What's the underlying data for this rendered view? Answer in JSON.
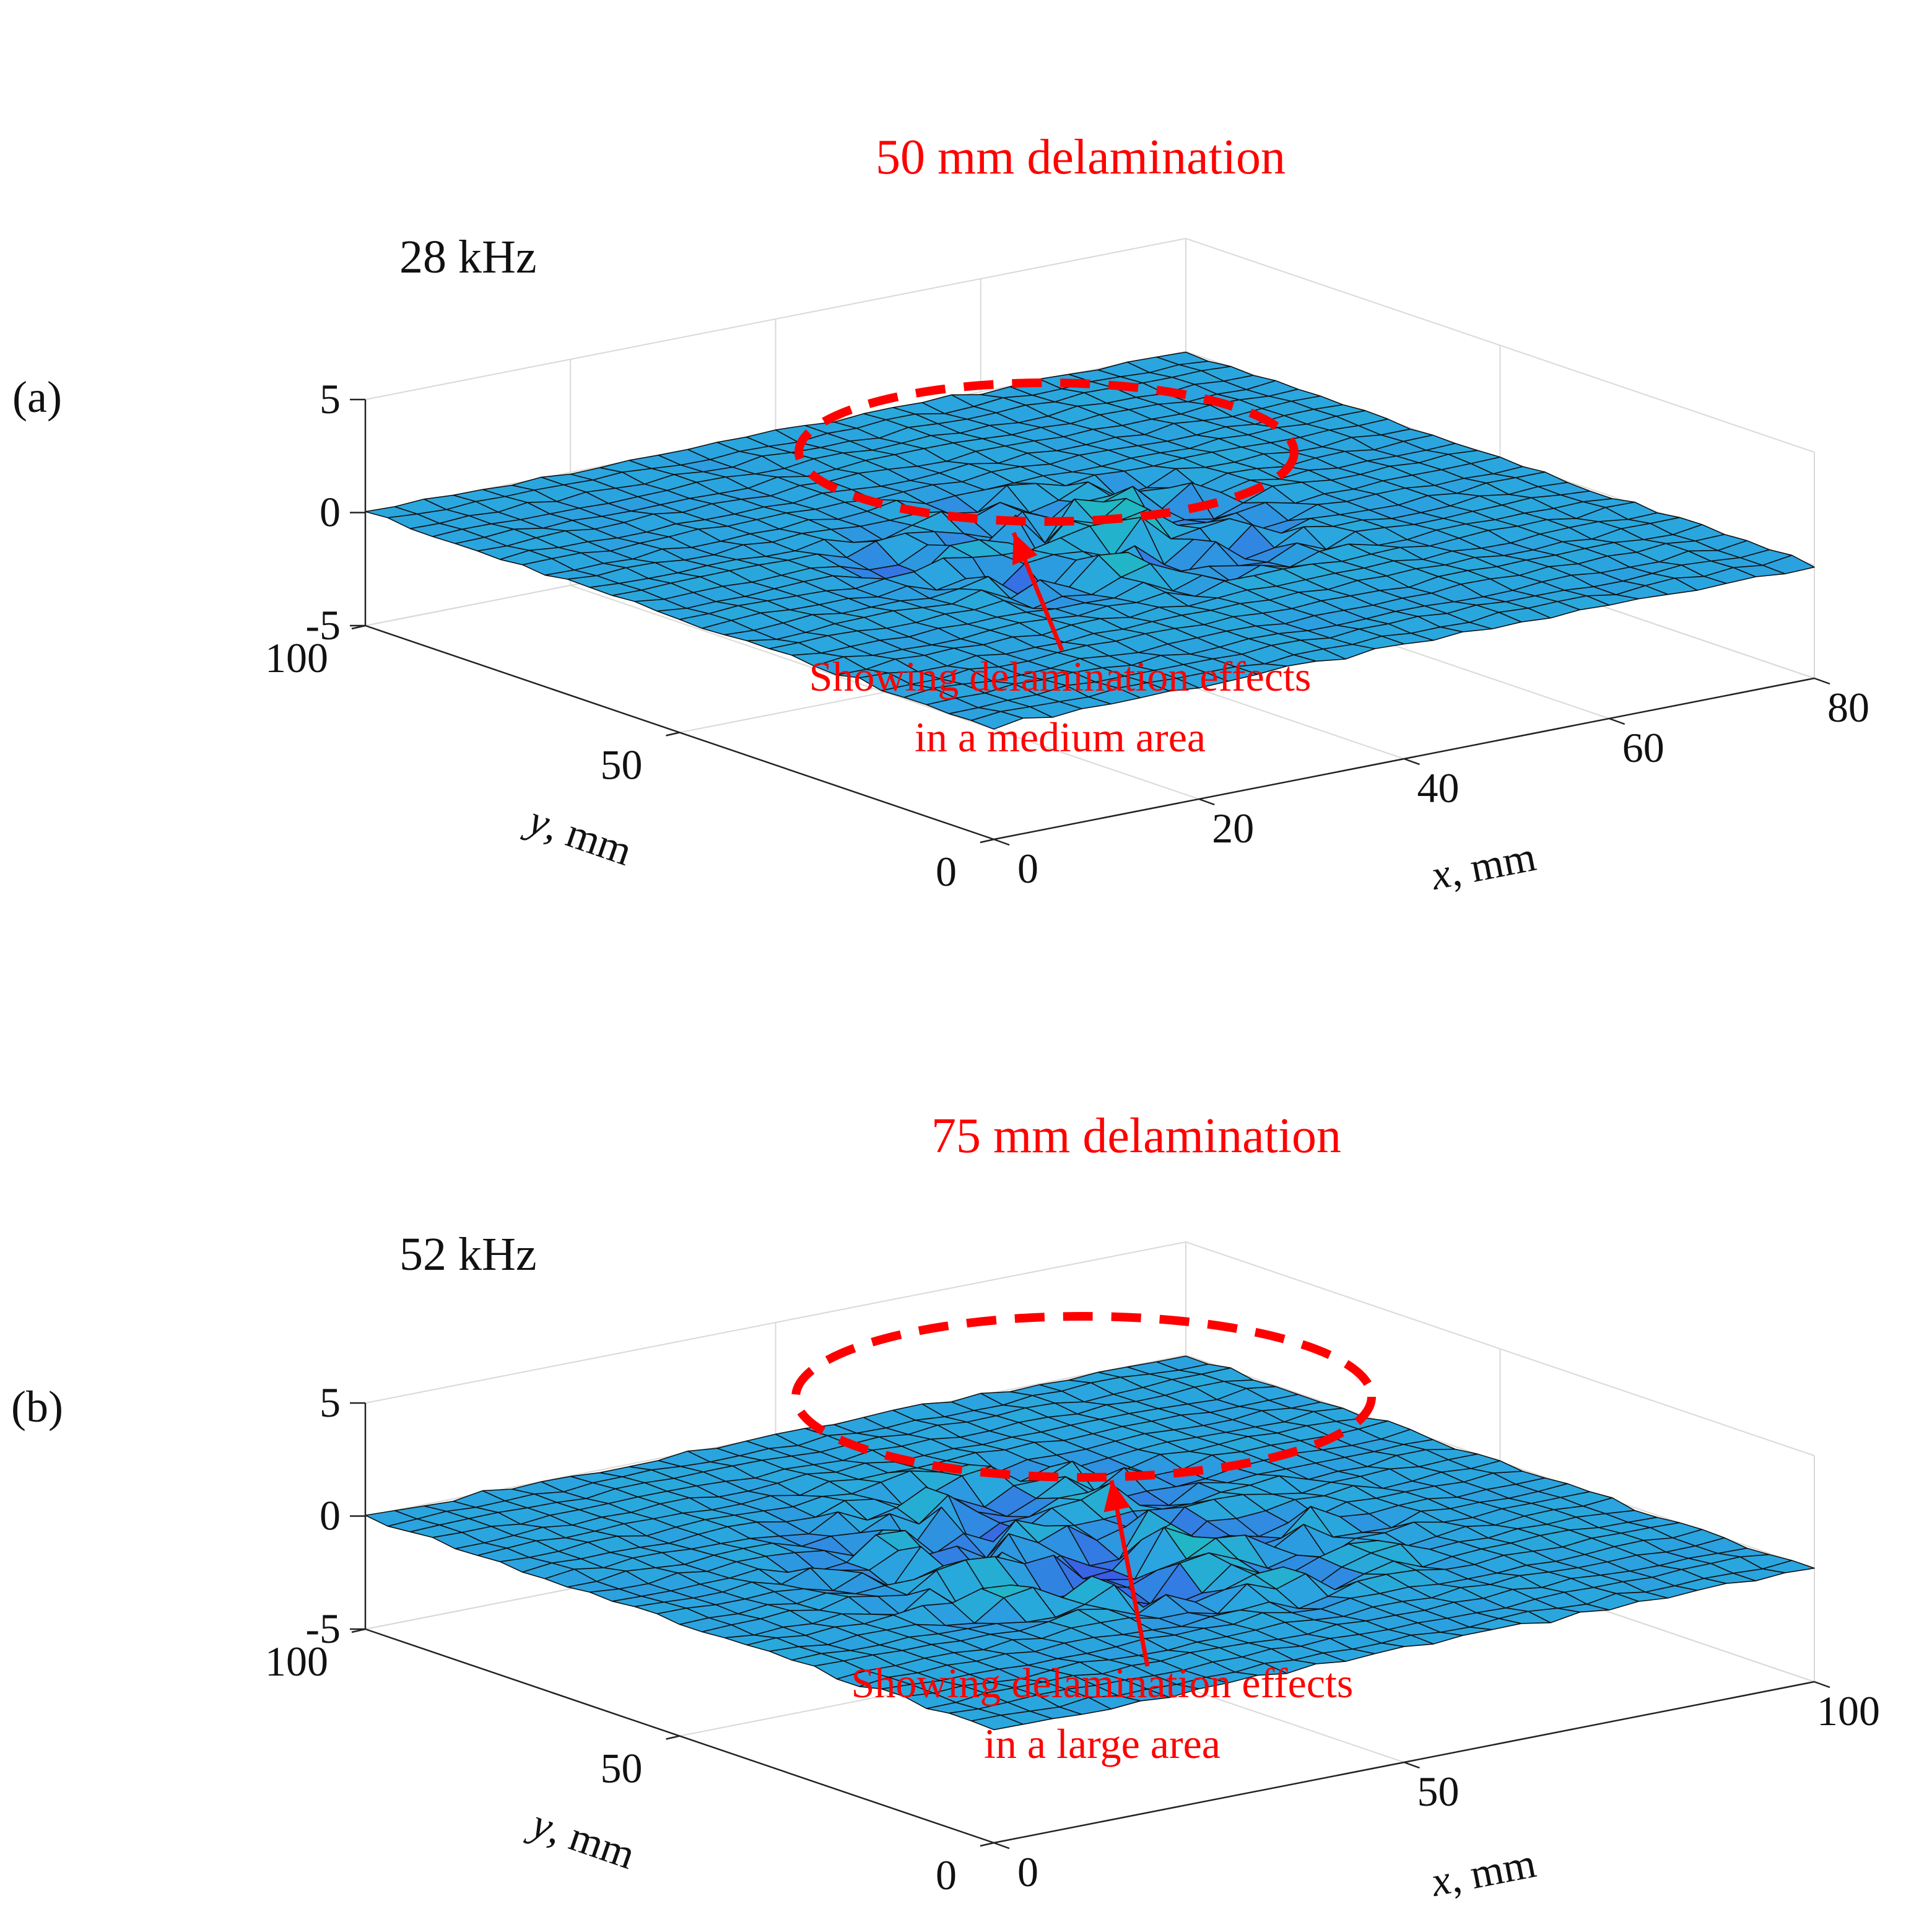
{
  "colors": {
    "annotation": "#ff0000",
    "surface_flat": "#2aa6df",
    "surface_low": "#3b55e6",
    "surface_mid": "#20b7c4",
    "surface_high": "#f2df2a",
    "mesh_line": "#111111",
    "grid": "#d9d9d9"
  },
  "chart_data": [
    {
      "type": "surface",
      "panel_label": "(a)",
      "frequency_label": "28 kHz",
      "title": "50 mm delamination",
      "annotation": [
        "Showing delamination effects",
        "in a medium area"
      ],
      "xlabel_var": "x",
      "xlabel_unit": ", mm",
      "ylabel_var": "y",
      "ylabel_unit": ", mm",
      "xlim": [
        0,
        80
      ],
      "ylim": [
        0,
        100
      ],
      "zlim": [
        -5,
        5
      ],
      "xticks": [
        0,
        20,
        40,
        60,
        80
      ],
      "yticks": [
        0,
        50,
        100
      ],
      "zticks": [
        -5,
        0,
        5
      ],
      "grid": true,
      "delamination_center": [
        40,
        50
      ],
      "delamination_diameter_mm": 50,
      "colormap": "parula"
    },
    {
      "type": "surface",
      "panel_label": "(b)",
      "frequency_label": "52 kHz",
      "title": "75 mm delamination",
      "annotation": [
        "Showing delamination effects",
        "in a large area"
      ],
      "xlabel_var": "x",
      "xlabel_unit": ", mm",
      "ylabel_var": "y",
      "ylabel_unit": ", mm",
      "xlim": [
        0,
        100
      ],
      "ylim": [
        0,
        100
      ],
      "zlim": [
        -5,
        5
      ],
      "xticks": [
        0,
        50,
        100
      ],
      "yticks": [
        0,
        50,
        100
      ],
      "zticks": [
        -5,
        0,
        5
      ],
      "grid": true,
      "delamination_center": [
        50,
        50
      ],
      "delamination_diameter_mm": 75,
      "colormap": "parula"
    }
  ]
}
